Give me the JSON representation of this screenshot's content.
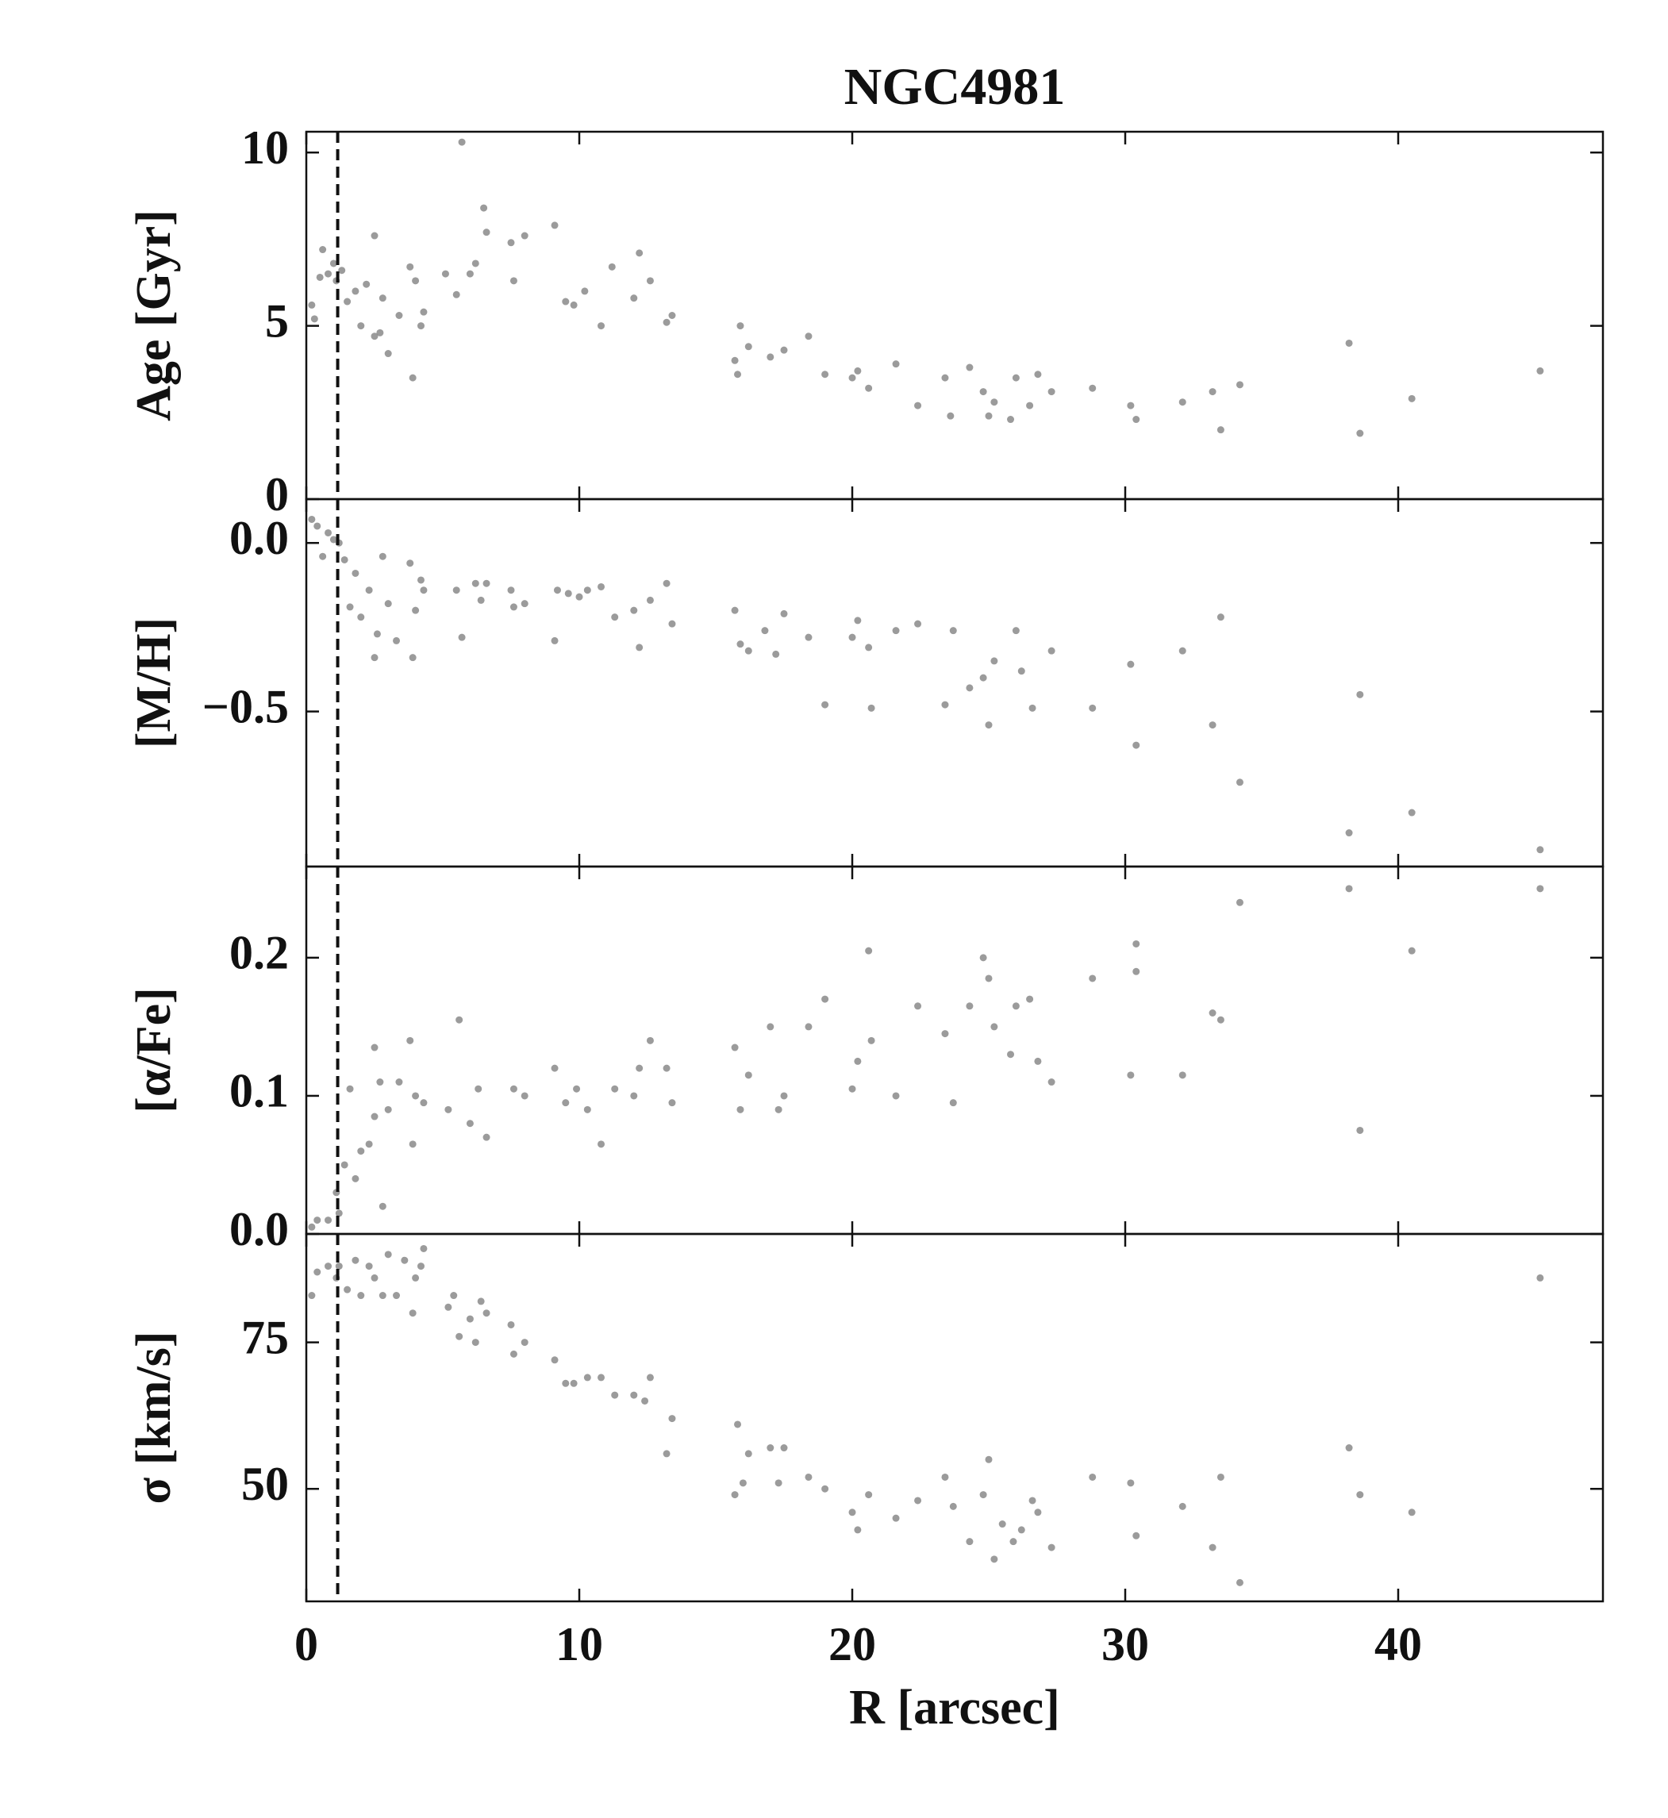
{
  "chart_data": [
    {
      "type": "scatter",
      "title": "NGC4981",
      "ylabel": "Age [Gyr]",
      "color": "#8a8a8a",
      "vline": 1.15,
      "xlim": [
        0,
        47.5
      ],
      "ylim": [
        0,
        10.6
      ],
      "yticks": [
        0,
        5,
        10
      ],
      "x": [
        0.2,
        0.3,
        0.5,
        0.6,
        0.8,
        1.0,
        1.1,
        1.3,
        1.5,
        1.8,
        2.0,
        2.2,
        2.5,
        2.5,
        2.7,
        2.8,
        3.0,
        3.4,
        3.8,
        3.9,
        4.0,
        4.2,
        4.3,
        5.1,
        5.5,
        5.7,
        6.0,
        6.2,
        6.5,
        6.6,
        7.5,
        7.6,
        8.0,
        9.1,
        9.5,
        9.8,
        10.2,
        10.8,
        11.2,
        12.0,
        12.2,
        12.6,
        13.2,
        13.4,
        15.7,
        15.8,
        15.9,
        16.2,
        17.0,
        17.5,
        18.4,
        19.0,
        20.0,
        20.2,
        20.6,
        21.6,
        22.4,
        23.4,
        23.6,
        24.3,
        24.8,
        25.0,
        25.2,
        25.8,
        26.0,
        26.5,
        26.8,
        27.3,
        28.8,
        30.2,
        30.4,
        32.1,
        33.2,
        33.5,
        34.2,
        38.2,
        38.6,
        40.5,
        45.2
      ],
      "values": [
        5.6,
        5.2,
        6.4,
        7.2,
        6.5,
        6.8,
        6.3,
        6.6,
        5.7,
        6.0,
        5.0,
        6.2,
        7.6,
        4.7,
        4.8,
        5.8,
        4.2,
        5.3,
        6.7,
        3.5,
        6.3,
        5.0,
        5.4,
        6.5,
        5.9,
        10.3,
        6.5,
        6.8,
        8.4,
        7.7,
        7.4,
        6.3,
        7.6,
        7.9,
        5.7,
        5.6,
        6.0,
        5.0,
        6.7,
        5.8,
        7.1,
        6.3,
        5.1,
        5.3,
        4.0,
        3.6,
        5.0,
        4.4,
        4.1,
        4.3,
        4.7,
        3.6,
        3.5,
        3.7,
        3.2,
        3.9,
        2.7,
        3.5,
        2.4,
        3.8,
        3.1,
        2.4,
        2.8,
        2.3,
        3.5,
        2.7,
        3.6,
        3.1,
        3.2,
        2.7,
        2.3,
        2.8,
        3.1,
        2.0,
        3.3,
        4.5,
        1.9,
        2.9,
        3.7
      ]
    },
    {
      "type": "scatter",
      "ylabel": "[M/H]",
      "color": "#8a8a8a",
      "vline": 1.15,
      "xlim": [
        0,
        47.5
      ],
      "ylim": [
        -0.96,
        0.13
      ],
      "yticks": [
        {
          "value": 0,
          "label": "0.0"
        },
        {
          "value": -0.5,
          "label": "−0.5"
        }
      ],
      "x": [
        0.2,
        0.4,
        0.6,
        0.8,
        1.0,
        1.2,
        1.4,
        1.6,
        1.8,
        2.0,
        2.3,
        2.5,
        2.6,
        2.8,
        3.0,
        3.3,
        3.8,
        3.9,
        4.0,
        4.2,
        4.3,
        5.5,
        5.7,
        6.2,
        6.4,
        6.6,
        7.5,
        7.6,
        8.0,
        9.1,
        9.2,
        9.6,
        10.0,
        10.3,
        10.8,
        11.3,
        12.0,
        12.2,
        12.6,
        13.2,
        13.4,
        15.7,
        15.9,
        16.2,
        16.8,
        17.2,
        17.5,
        18.4,
        19.0,
        20.0,
        20.2,
        20.6,
        20.7,
        21.6,
        22.4,
        23.4,
        23.7,
        24.3,
        24.8,
        25.0,
        25.2,
        26.0,
        26.2,
        26.6,
        27.3,
        28.8,
        30.2,
        30.4,
        32.1,
        33.2,
        33.5,
        34.2,
        38.2,
        38.6,
        40.5,
        45.2
      ],
      "values": [
        0.07,
        0.05,
        -0.04,
        0.03,
        0.01,
        0.0,
        -0.05,
        -0.19,
        -0.09,
        -0.22,
        -0.14,
        -0.34,
        -0.27,
        -0.04,
        -0.18,
        -0.29,
        -0.06,
        -0.34,
        -0.2,
        -0.11,
        -0.14,
        -0.14,
        -0.28,
        -0.12,
        -0.17,
        -0.12,
        -0.14,
        -0.19,
        -0.18,
        -0.29,
        -0.14,
        -0.15,
        -0.16,
        -0.14,
        -0.13,
        -0.22,
        -0.2,
        -0.31,
        -0.17,
        -0.12,
        -0.24,
        -0.2,
        -0.3,
        -0.32,
        -0.26,
        -0.33,
        -0.21,
        -0.28,
        -0.48,
        -0.28,
        -0.23,
        -0.31,
        -0.49,
        -0.26,
        -0.24,
        -0.48,
        -0.26,
        -0.43,
        -0.4,
        -0.54,
        -0.35,
        -0.26,
        -0.38,
        -0.49,
        -0.32,
        -0.49,
        -0.36,
        -0.6,
        -0.32,
        -0.54,
        -0.22,
        -0.71,
        -0.86,
        -0.45,
        -0.8,
        -0.91
      ]
    },
    {
      "type": "scatter",
      "ylabel": "[α/Fe]",
      "color": "#8a8a8a",
      "vline": 1.15,
      "xlim": [
        0,
        47.5
      ],
      "ylim": [
        0,
        0.266
      ],
      "yticks": [
        {
          "value": 0,
          "label": "0.0"
        },
        0.1,
        0.2
      ],
      "x": [
        0.2,
        0.4,
        0.8,
        1.1,
        1.2,
        1.4,
        1.6,
        1.8,
        2.0,
        2.3,
        2.5,
        2.5,
        2.7,
        2.8,
        3.0,
        3.4,
        3.8,
        3.9,
        4.0,
        4.3,
        5.2,
        5.6,
        6.0,
        6.3,
        6.6,
        7.6,
        8.0,
        9.1,
        9.5,
        9.9,
        10.3,
        10.8,
        11.3,
        12.0,
        12.2,
        12.6,
        13.2,
        13.4,
        15.7,
        15.9,
        16.2,
        17.0,
        17.3,
        17.5,
        18.4,
        19.0,
        20.0,
        20.2,
        20.6,
        20.7,
        21.6,
        22.4,
        23.4,
        23.7,
        24.3,
        24.8,
        25.0,
        25.2,
        25.8,
        26.0,
        26.5,
        26.8,
        27.3,
        28.8,
        30.2,
        30.4,
        30.4,
        32.1,
        33.2,
        33.5,
        34.2,
        38.2,
        38.6,
        40.5,
        45.2
      ],
      "values": [
        0.005,
        0.01,
        0.01,
        0.03,
        0.015,
        0.05,
        0.105,
        0.04,
        0.06,
        0.065,
        0.135,
        0.085,
        0.11,
        0.02,
        0.09,
        0.11,
        0.14,
        0.065,
        0.1,
        0.095,
        0.09,
        0.155,
        0.08,
        0.105,
        0.07,
        0.105,
        0.1,
        0.12,
        0.095,
        0.105,
        0.09,
        0.065,
        0.105,
        0.1,
        0.12,
        0.14,
        0.12,
        0.095,
        0.135,
        0.09,
        0.115,
        0.15,
        0.09,
        0.1,
        0.15,
        0.17,
        0.105,
        0.125,
        0.205,
        0.14,
        0.1,
        0.165,
        0.145,
        0.095,
        0.165,
        0.2,
        0.185,
        0.15,
        0.13,
        0.165,
        0.17,
        0.125,
        0.11,
        0.185,
        0.115,
        0.21,
        0.19,
        0.115,
        0.16,
        0.155,
        0.24,
        0.25,
        0.075,
        0.205,
        0.25
      ]
    },
    {
      "type": "scatter",
      "ylabel": "σ [km/s]",
      "xlabel": "R [arcsec]",
      "color": "#8a8a8a",
      "vline": 1.15,
      "xlim": [
        0,
        47.5
      ],
      "ylim": [
        30.8,
        93.5
      ],
      "yticks": [
        50,
        75
      ],
      "xticks": [
        0,
        10,
        20,
        30,
        40
      ],
      "x": [
        0.2,
        0.4,
        0.8,
        1.1,
        1.2,
        1.5,
        1.8,
        2.0,
        2.3,
        2.5,
        2.8,
        3.0,
        3.3,
        3.6,
        3.9,
        4.0,
        4.2,
        4.3,
        5.2,
        5.4,
        5.6,
        6.0,
        6.2,
        6.4,
        6.6,
        7.5,
        7.6,
        8.0,
        9.1,
        9.5,
        9.8,
        10.3,
        10.8,
        11.3,
        12.0,
        12.4,
        12.6,
        13.2,
        13.4,
        15.7,
        15.8,
        16.0,
        16.2,
        17.0,
        17.3,
        17.5,
        18.4,
        19.0,
        20.0,
        20.2,
        20.6,
        21.6,
        22.4,
        23.4,
        23.7,
        24.3,
        24.8,
        25.0,
        25.2,
        25.5,
        25.9,
        26.2,
        26.6,
        26.8,
        27.3,
        28.8,
        30.2,
        30.4,
        32.1,
        33.2,
        33.5,
        34.2,
        38.2,
        38.6,
        40.5,
        45.2
      ],
      "values": [
        83,
        87,
        88,
        86,
        88,
        84,
        89,
        83,
        88,
        86,
        83,
        90,
        83,
        89,
        80,
        86,
        88,
        91,
        81,
        83,
        76,
        79,
        75,
        82,
        80,
        78,
        73,
        75,
        72,
        68,
        68,
        69,
        69,
        66,
        66,
        65,
        69,
        56,
        62,
        49,
        61,
        51,
        56,
        57,
        51,
        57,
        52,
        50,
        46,
        43,
        49,
        45,
        48,
        52,
        47,
        41,
        49,
        55,
        38,
        44,
        41,
        43,
        48,
        46,
        40,
        52,
        51,
        42,
        47,
        40,
        52,
        34,
        57,
        49,
        46,
        86
      ]
    }
  ]
}
